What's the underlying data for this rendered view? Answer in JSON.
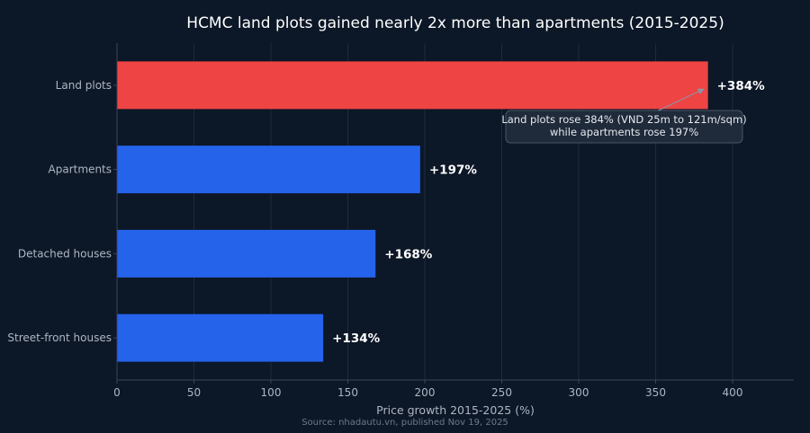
{
  "chart_data": {
    "type": "bar",
    "orientation": "horizontal",
    "title": "HCMC land plots gained nearly 2x more than apartments (2015-2025)",
    "xlabel": "Price growth 2015-2025 (%)",
    "ylabel": "",
    "xlim": [
      0,
      440
    ],
    "x_ticks": [
      0,
      50,
      100,
      150,
      200,
      250,
      300,
      350,
      400
    ],
    "categories": [
      "Land plots",
      "Apartments",
      "Detached houses",
      "Street-front houses"
    ],
    "values": [
      384,
      197,
      168,
      134
    ],
    "data_labels": [
      "+384%",
      "+197%",
      "+168%",
      "+134%"
    ],
    "bar_colors": [
      "#ef4444",
      "#2563eb",
      "#2563eb",
      "#2563eb"
    ],
    "grid": true,
    "annotation": {
      "lines": [
        "Land plots rose 384% (VND 25m to 121m/sqm)",
        "while apartments rose 197%"
      ],
      "target_category": "Land plots",
      "target_value": 384
    },
    "source": "Source: nhadautu.vn, published Nov 19, 2025"
  },
  "colors": {
    "background": "#0c1727",
    "grid": "#1e2a3b",
    "axis": "#3a4658",
    "annotation_box": "#1f2a3b",
    "annotation_border": "#4a5566",
    "arrow": "#8a95a5"
  }
}
